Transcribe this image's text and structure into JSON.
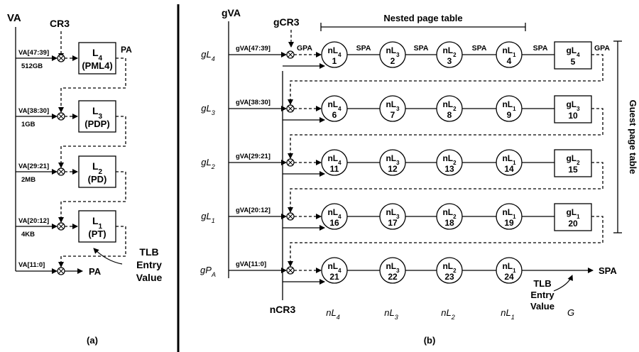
{
  "panel_a": {
    "va": "VA",
    "cr3": "CR3",
    "pa_top": "PA",
    "pa_bottom": "PA",
    "caption": "(a)",
    "tlb": [
      "TLB",
      "Entry",
      "Value"
    ],
    "rows": [
      {
        "field": "VA[47:39]",
        "size": "512GB",
        "level": "4",
        "name": "(PML4)"
      },
      {
        "field": "VA[38:30]",
        "size": "1GB",
        "level": "3",
        "name": "(PDP)"
      },
      {
        "field": "VA[29:21]",
        "size": "2MB",
        "level": "2",
        "name": "(PD)"
      },
      {
        "field": "VA[20:12]",
        "size": "4KB",
        "level": "1",
        "name": "(PT)"
      }
    ],
    "last_field": "VA[11:0]"
  },
  "panel_b": {
    "gva": "gVA",
    "gcr3": "gCR3",
    "ncr3": "nCR3",
    "nested_title": "Nested page table",
    "guest_title": "Guest page table",
    "caption": "(b)",
    "gpa_label": "GPA",
    "spa_label": "SPA",
    "spa_out": "SPA",
    "tlb": [
      "TLB",
      "Entry",
      "Value"
    ],
    "row_labels": [
      "gL4",
      "gL3",
      "gL2",
      "gL1",
      "gPA"
    ],
    "fields": [
      "gVA[47:39]",
      "gVA[38:30]",
      "gVA[29:21]",
      "gVA[20:12]",
      "gVA[11:0]"
    ],
    "nested_levels": [
      "4",
      "3",
      "2",
      "1"
    ],
    "guest_boxes": [
      {
        "level": "4",
        "num": "5"
      },
      {
        "level": "3",
        "num": "10"
      },
      {
        "level": "2",
        "num": "15"
      },
      {
        "level": "1",
        "num": "20"
      }
    ],
    "circle_nums": [
      [
        "1",
        "2",
        "3",
        "4"
      ],
      [
        "6",
        "7",
        "8",
        "9"
      ],
      [
        "11",
        "12",
        "13",
        "14"
      ],
      [
        "16",
        "17",
        "18",
        "19"
      ],
      [
        "21",
        "22",
        "23",
        "24"
      ]
    ],
    "bottom_labels": [
      "nL4",
      "nL3",
      "nL2",
      "nL1"
    ],
    "g_label": "G"
  }
}
